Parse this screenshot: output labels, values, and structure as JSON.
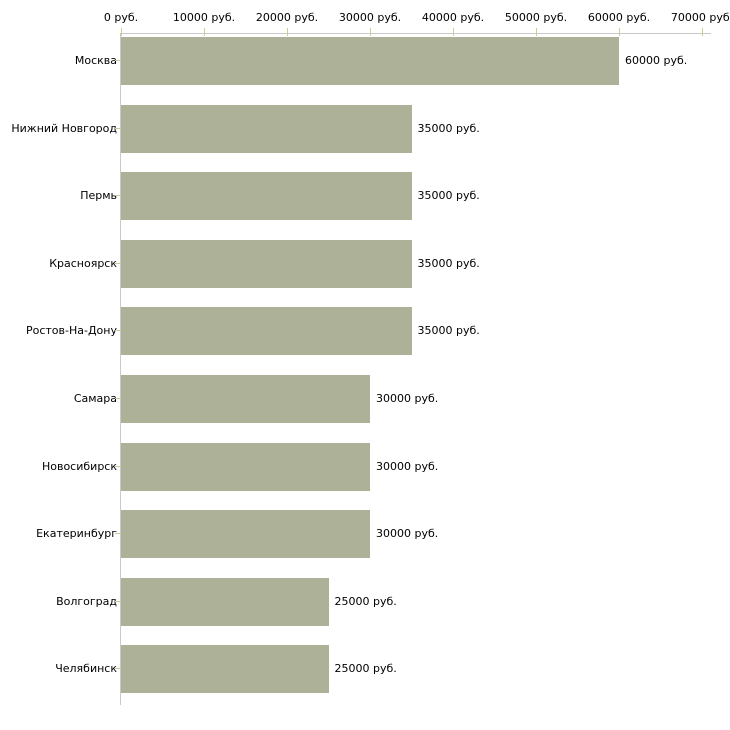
{
  "chart_data": {
    "type": "bar",
    "orientation": "horizontal",
    "title": "",
    "xlabel": "",
    "ylabel": "",
    "categories": [
      "Москва",
      "Нижний Новгород",
      "Пермь",
      "Красноярск",
      "Ростов-На-Дону",
      "Самара",
      "Новосибирск",
      "Екатеринбург",
      "Волгоград",
      "Челябинск"
    ],
    "values": [
      60000,
      35000,
      35000,
      35000,
      35000,
      30000,
      30000,
      30000,
      25000,
      25000
    ],
    "bar_labels": [
      "60000 руб.",
      "35000 руб.",
      "35000 руб.",
      "35000 руб.",
      "35000 руб.",
      "30000 руб.",
      "30000 руб.",
      "30000 руб.",
      "25000 руб.",
      "25000 руб."
    ],
    "x_ticks": [
      0,
      10000,
      20000,
      30000,
      40000,
      50000,
      60000,
      70000
    ],
    "x_tick_labels": [
      "0 руб.",
      "10000 руб.",
      "20000 руб.",
      "30000 руб.",
      "40000 руб.",
      "50000 руб.",
      "60000 руб.",
      "70000 руб."
    ],
    "xlim": [
      0,
      70000
    ],
    "axis_position": "top",
    "grid": false,
    "legend": null,
    "colors": {
      "bar": "#acb197",
      "axis_line": "#c9c9c9",
      "tick_mark": "#cccc99",
      "text": "#000000",
      "background": "#ffffff"
    }
  }
}
